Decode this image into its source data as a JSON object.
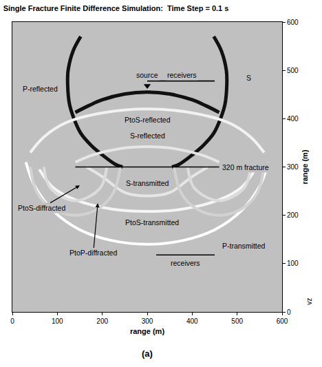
{
  "chart_data": {
    "type": "line",
    "title": "Single Fracture Finite Difference Simulation:  Time Step = 0.1 s",
    "x_label": "range (m)",
    "y_label": "range (m)",
    "corner_label": "vz",
    "caption": "(a)",
    "xlim": [
      0,
      600
    ],
    "ylim": [
      0,
      600
    ],
    "xticks": [
      0,
      100,
      200,
      300,
      400,
      500,
      600
    ],
    "yticks": [
      0,
      100,
      200,
      300,
      400,
      500,
      600
    ],
    "grid": false,
    "series": [
      {
        "name": "S",
        "color": "#111111",
        "line_style": "heavy",
        "x": [
          152,
          135,
          124,
          123,
          127,
          137,
          152,
          175,
          200,
          230,
          245,
          null,
          448,
          465,
          476,
          477,
          473,
          463,
          448,
          425,
          400,
          370,
          355
        ],
        "values": [
          570,
          540,
          500,
          470,
          430,
          400,
          370,
          345,
          325,
          305,
          300,
          null,
          570,
          540,
          500,
          470,
          430,
          400,
          370,
          345,
          325,
          305,
          300
        ]
      },
      {
        "name": "P-reflected",
        "color": "#111111",
        "line_style": "heavy",
        "x": [
          140,
          170,
          200,
          250,
          300,
          350,
          400,
          430,
          460
        ],
        "values": [
          413,
          427,
          439,
          451,
          455,
          451,
          439,
          427,
          413
        ]
      },
      {
        "name": "PtoS-reflected",
        "color": "#f2f2f2",
        "line_style": "band",
        "x": [
          40,
          70,
          120,
          200,
          300,
          400,
          480,
          530,
          560
        ],
        "values": [
          330,
          362,
          392,
          412,
          420,
          412,
          392,
          362,
          330
        ]
      },
      {
        "name": "S-reflected",
        "color": "#e6e6e6",
        "line_style": "band",
        "x": [
          140,
          180,
          240,
          300,
          360,
          420,
          460
        ],
        "values": [
          310,
          325,
          338,
          342,
          338,
          325,
          310
        ]
      },
      {
        "name": "S-transmitted",
        "color": "#e6e6e6",
        "line_style": "band",
        "x": [
          165,
          200,
          250,
          300,
          350,
          400,
          435
        ],
        "values": [
          300,
          280,
          247,
          240,
          247,
          280,
          300
        ]
      },
      {
        "name": "PtoS-transmitted",
        "color": "#f5f5f5",
        "line_style": "band",
        "x": [
          60,
          90,
          140,
          220,
          300,
          380,
          460,
          510,
          540
        ],
        "values": [
          295,
          258,
          232,
          213,
          208,
          213,
          232,
          258,
          295
        ]
      },
      {
        "name": "P-transmitted",
        "color": "#ffffff",
        "line_style": "band",
        "x": [
          30,
          50,
          90,
          150,
          220,
          300,
          380,
          450,
          510,
          550,
          570
        ],
        "values": [
          310,
          260,
          210,
          170,
          148,
          140,
          148,
          170,
          210,
          260,
          310
        ]
      },
      {
        "name": "PtoS-diffracted",
        "color": "#dcdcdc",
        "line_style": "band",
        "x": [
          70,
          85,
          140,
          195,
          210,
          null,
          390,
          405,
          460,
          515,
          530
        ],
        "values": [
          300,
          256,
          230,
          256,
          300,
          null,
          300,
          256,
          230,
          256,
          300
        ]
      },
      {
        "name": "PtoP-diffracted",
        "color": "#d2d2d2",
        "line_style": "band",
        "x": [
          40,
          55,
          90,
          140,
          190,
          225,
          240,
          null,
          360,
          375,
          410,
          460,
          510,
          545,
          560
        ],
        "values": [
          300,
          247,
          213,
          200,
          213,
          247,
          300,
          null,
          300,
          247,
          213,
          200,
          213,
          247,
          300
        ]
      },
      {
        "name": "320 m fracture",
        "color": "#000000",
        "line_style": "thin",
        "x": [
          140,
          460
        ],
        "values": [
          300,
          300
        ]
      },
      {
        "name": "receivers",
        "color": "#000000",
        "line_style": "thin",
        "x": [
          300,
          450
        ],
        "values": [
          478,
          478
        ]
      },
      {
        "name": "receivers",
        "color": "#000000",
        "line_style": "thin",
        "x": [
          320,
          450
        ],
        "values": [
          118,
          118
        ]
      },
      {
        "name": "source",
        "type": "scatter",
        "marker": "triangle-down",
        "color": "#000000",
        "x": [
          300
        ],
        "values": [
          468
        ]
      }
    ],
    "annotations": [
      {
        "text": "source",
        "x": 300,
        "y": 490
      },
      {
        "text": "receivers",
        "x": 378,
        "y": 490
      },
      {
        "text": "P-reflected",
        "x": 62,
        "y": 462
      },
      {
        "text": "S",
        "x": 525,
        "y": 485
      },
      {
        "text": "PtoS-reflected",
        "x": 300,
        "y": 398
      },
      {
        "text": "S-reflected",
        "x": 300,
        "y": 365
      },
      {
        "text": "320 m fracture",
        "x": 464,
        "y": 300,
        "anchor": "left"
      },
      {
        "text": "S-transmitted",
        "x": 300,
        "y": 266
      },
      {
        "text": "PtoS-transmitted",
        "x": 310,
        "y": 185
      },
      {
        "text": "P-transmitted",
        "x": 515,
        "y": 137
      },
      {
        "text": "PtoS-diffracted",
        "x": 65,
        "y": 215,
        "arrow_x": 150,
        "arrow_y": 262
      },
      {
        "text": "PtoP-diffracted",
        "x": 180,
        "y": 122,
        "arrow_x": 190,
        "arrow_y": 225
      },
      {
        "text": "receivers",
        "x": 385,
        "y": 101
      }
    ]
  }
}
